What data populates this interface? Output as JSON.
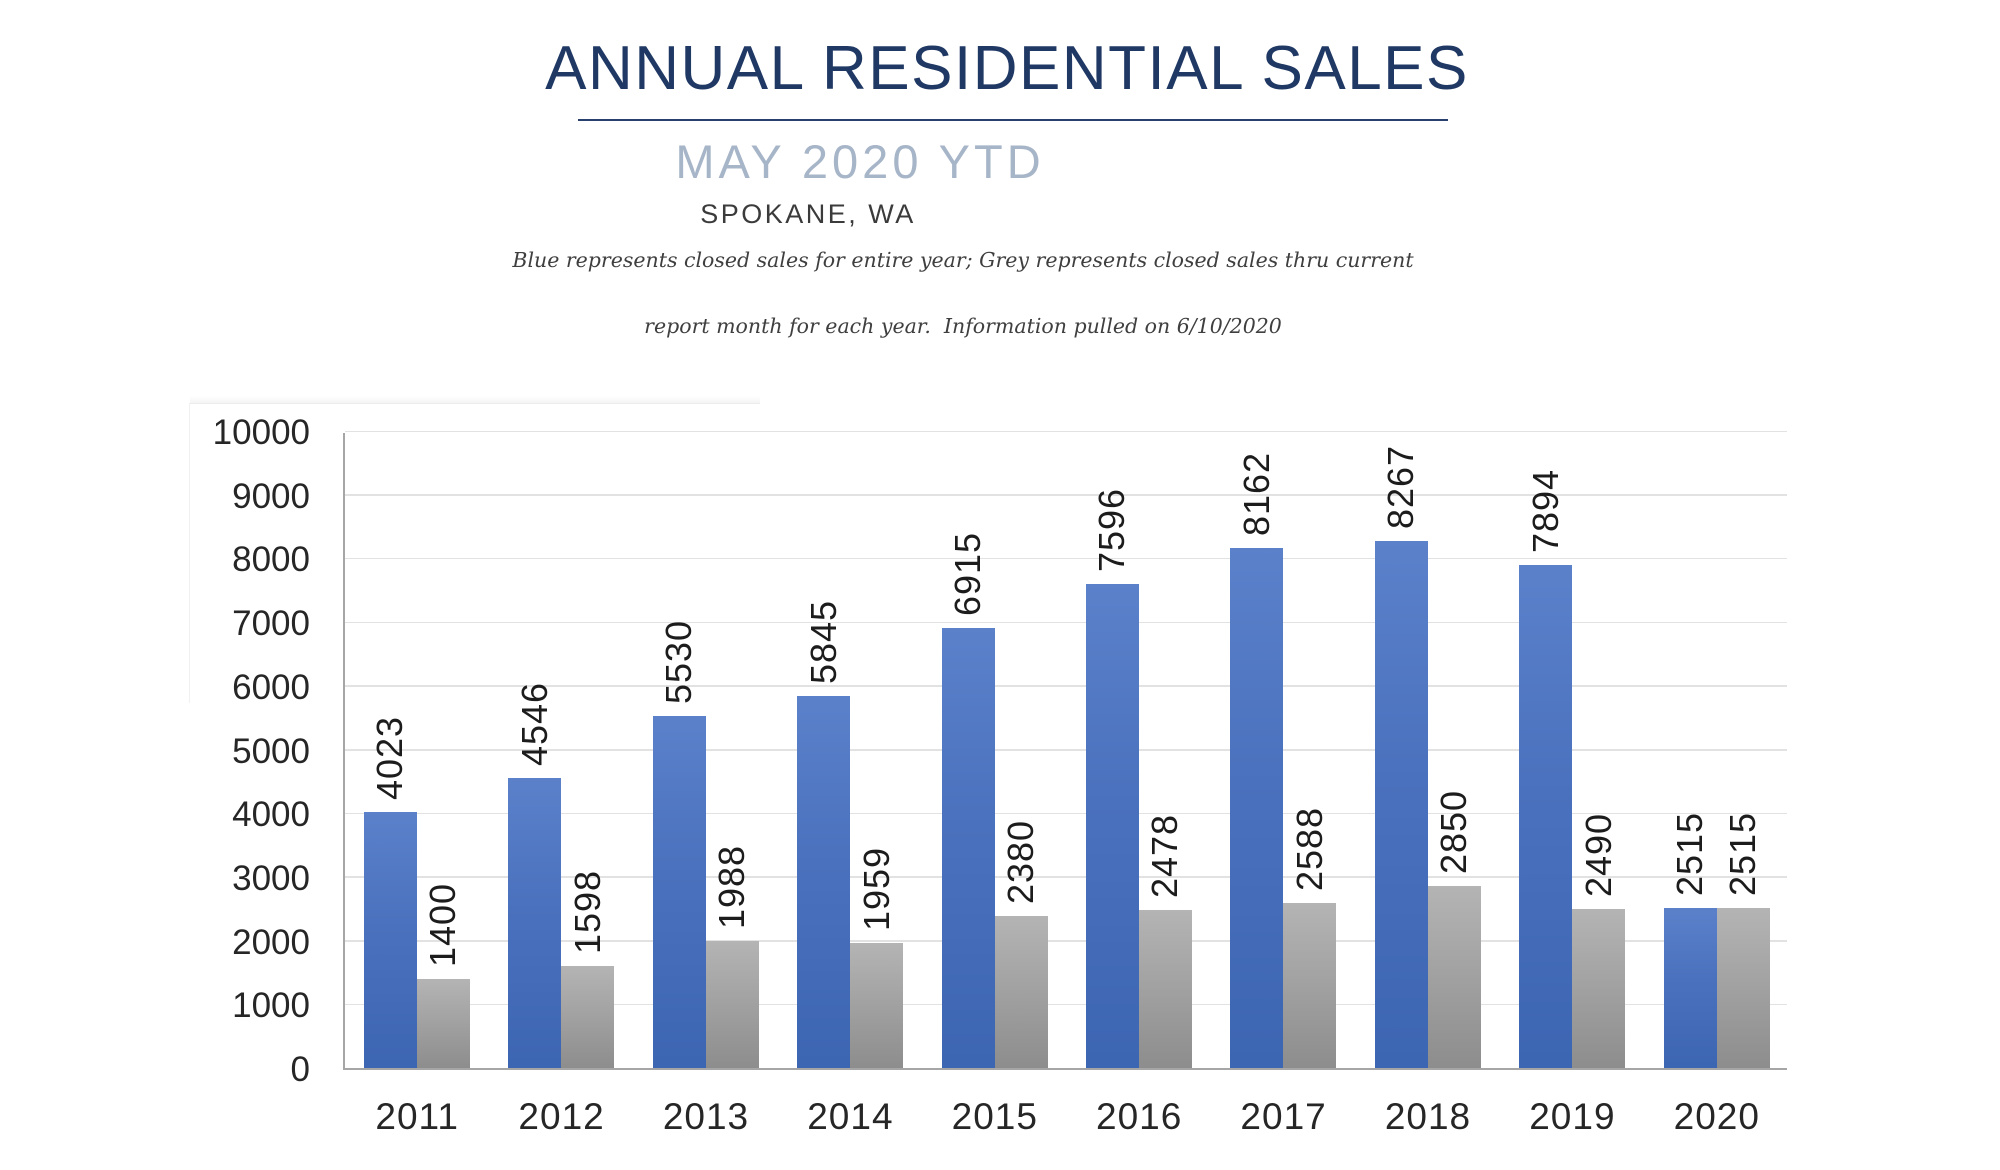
{
  "header": {
    "title": "ANNUAL RESIDENTIAL SALES",
    "subtitle": "MAY 2020 YTD",
    "location": "SPOKANE, WA",
    "note_line1": "Blue represents closed sales for entire year; Grey represents closed sales thru current",
    "note_line2": "report month for each year.  Information pulled on 6/10/2020"
  },
  "colors": {
    "title": "#1f3864",
    "subtitle": "#a7b5c8",
    "location": "#3b3b3b",
    "note": "#3f3f3f",
    "bar_blue_top": "#5b81cb",
    "bar_blue_bottom": "#3c65b2",
    "bar_grey_top": "#b4b4b4",
    "bar_grey_bottom": "#8d8d8d",
    "gridline": "#e2e2e2",
    "axis_line": "#a6a6a6",
    "axis_text": "#262626"
  },
  "chart_data": {
    "type": "bar",
    "title": "ANNUAL RESIDENTIAL SALES",
    "subtitle": "MAY 2020 YTD",
    "categories": [
      "2011",
      "2012",
      "2013",
      "2014",
      "2015",
      "2016",
      "2017",
      "2018",
      "2019",
      "2020"
    ],
    "series": [
      {
        "name": "Closed sales for entire year",
        "color": "blue",
        "values": [
          4023,
          4546,
          5530,
          5845,
          6915,
          7596,
          8162,
          8267,
          7894,
          2515
        ]
      },
      {
        "name": "Closed sales thru current report month",
        "color": "grey",
        "values": [
          1400,
          1598,
          1988,
          1959,
          2380,
          2478,
          2588,
          2850,
          2490,
          2515
        ]
      }
    ],
    "ylim": [
      0,
      10000
    ],
    "yticks": [
      0,
      1000,
      2000,
      3000,
      4000,
      5000,
      6000,
      7000,
      8000,
      9000,
      10000
    ],
    "grid": true,
    "legend_position": "none",
    "data_labels": "rotated-90-above-bars",
    "xlabel": "",
    "ylabel": ""
  }
}
